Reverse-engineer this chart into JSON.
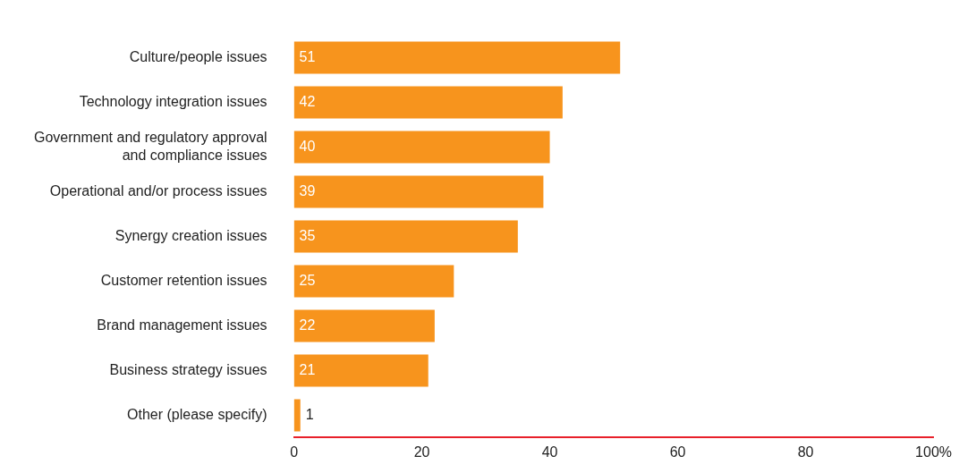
{
  "chart_data": {
    "type": "bar",
    "orientation": "horizontal",
    "categories": [
      "Culture/people issues",
      "Technology integration issues",
      "Government and regulatory approval\nand compliance issues",
      "Operational and/or process issues",
      "Synergy creation issues",
      "Customer retention issues",
      "Brand management issues",
      "Business strategy issues",
      "Other (please specify)"
    ],
    "values": [
      51,
      42,
      40,
      39,
      35,
      25,
      22,
      21,
      1
    ],
    "color": "#f7941d",
    "xlim": [
      0,
      100
    ],
    "xticks": [
      0,
      20,
      40,
      60,
      80,
      {
        "value": 100,
        "label": "100%"
      }
    ],
    "data_labels": true,
    "grid": false,
    "legend": false
  }
}
